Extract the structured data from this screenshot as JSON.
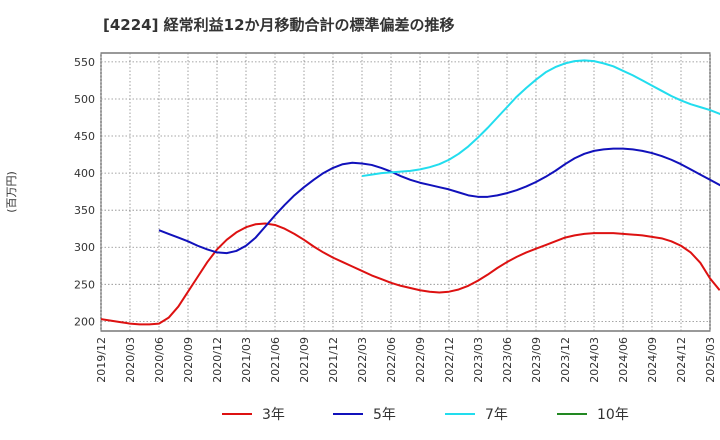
{
  "chart_data": {
    "type": "line",
    "title": "[4224]  経常利益12か月移動合計の標準偏差の推移",
    "ylabel": "(百万円)",
    "xlabel": "",
    "ylim": [
      187,
      562
    ],
    "yticks": [
      200,
      250,
      300,
      350,
      400,
      450,
      500,
      550
    ],
    "xticks": [
      "2019/12",
      "2020/03",
      "2020/06",
      "2020/09",
      "2020/12",
      "2021/03",
      "2021/06",
      "2021/09",
      "2021/12",
      "2022/03",
      "2022/06",
      "2022/09",
      "2022/12",
      "2023/03",
      "2023/06",
      "2023/09",
      "2023/12",
      "2024/03",
      "2024/06",
      "2024/09",
      "2024/12",
      "2025/03"
    ],
    "grid": true,
    "legend_position": "bottom",
    "series": [
      {
        "name": "3年",
        "color": "#dd1111",
        "start": 0,
        "values": [
          203,
          201,
          199,
          197,
          196,
          196,
          197,
          205,
          220,
          240,
          260,
          280,
          297,
          310,
          320,
          327,
          331,
          332,
          330,
          325,
          318,
          310,
          301,
          293,
          286,
          280,
          274,
          268,
          262,
          257,
          252,
          248,
          245,
          242,
          240,
          239,
          240,
          243,
          248,
          255,
          263,
          272,
          280,
          287,
          293,
          298,
          303,
          308,
          313,
          316,
          318,
          319,
          319,
          319,
          318,
          317,
          316,
          314,
          312,
          308,
          302,
          293,
          279,
          258,
          242
        ]
      },
      {
        "name": "5年",
        "color": "#1111bb",
        "start": 6,
        "values": [
          323,
          318,
          313,
          308,
          302,
          297,
          293,
          292,
          295,
          302,
          313,
          328,
          343,
          357,
          370,
          381,
          391,
          400,
          407,
          412,
          414,
          413,
          411,
          407,
          402,
          396,
          391,
          387,
          384,
          381,
          378,
          374,
          370,
          368,
          368,
          370,
          373,
          377,
          382,
          388,
          395,
          403,
          412,
          420,
          426,
          430,
          432,
          433,
          433,
          432,
          430,
          427,
          423,
          418,
          412,
          405,
          398,
          391,
          384,
          377,
          370,
          362,
          354,
          346,
          337,
          328,
          318
        ]
      },
      {
        "name": "7年",
        "color": "#22ddee",
        "start": 27,
        "values": [
          396,
          398,
          400,
          401,
          402,
          403,
          405,
          408,
          412,
          418,
          426,
          436,
          448,
          461,
          475,
          489,
          503,
          515,
          526,
          536,
          543,
          548,
          551,
          552,
          551,
          548,
          544,
          538,
          532,
          525,
          518,
          511,
          504,
          498,
          493,
          489,
          485,
          480,
          473
        ]
      },
      {
        "name": "10年",
        "color": "#228822",
        "start": 0,
        "values": []
      }
    ]
  }
}
